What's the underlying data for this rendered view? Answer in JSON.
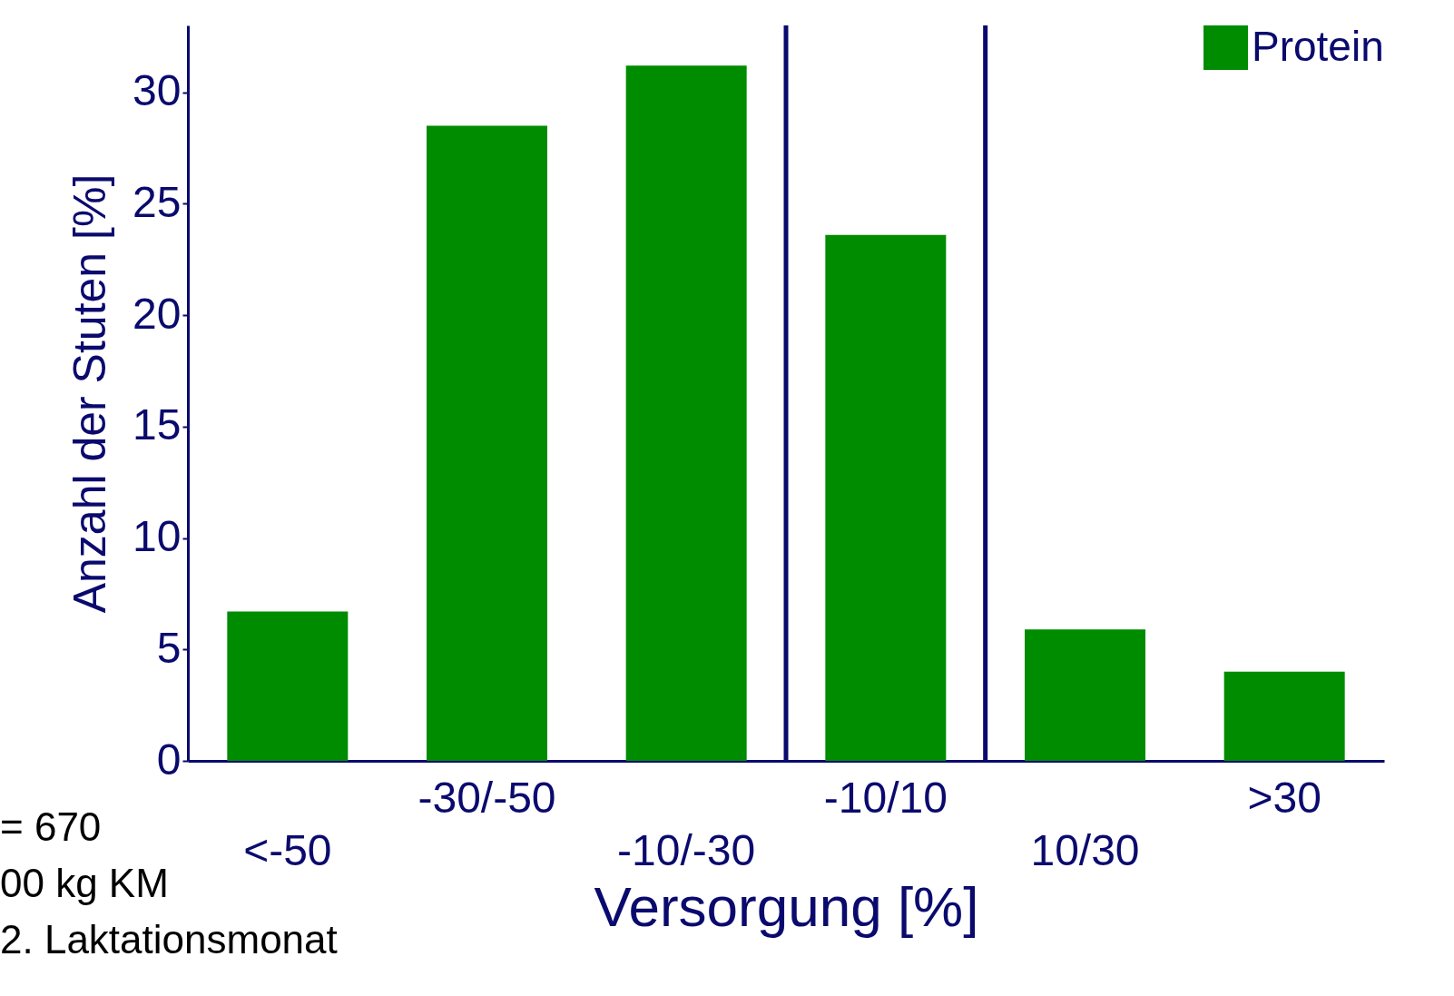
{
  "chart_data": {
    "type": "bar",
    "xlabel": "Versorgung [%]",
    "ylabel": "Anzahl der Stuten [%]",
    "categories": [
      "<-50",
      "-30/-50",
      "-10/-30",
      "-10/10",
      "10/30",
      ">30"
    ],
    "series": [
      {
        "name": "Protein",
        "color": "#008c00",
        "values": [
          6.7,
          28.5,
          31.2,
          23.6,
          5.9,
          4.0
        ]
      }
    ],
    "ylim": [
      0,
      33
    ],
    "yticks": [
      0,
      5,
      10,
      15,
      20,
      25,
      30
    ],
    "grid": false,
    "legend": "top right",
    "annotations": [
      "= 670",
      "00 kg KM",
      "2. Laktationsmonat"
    ]
  }
}
